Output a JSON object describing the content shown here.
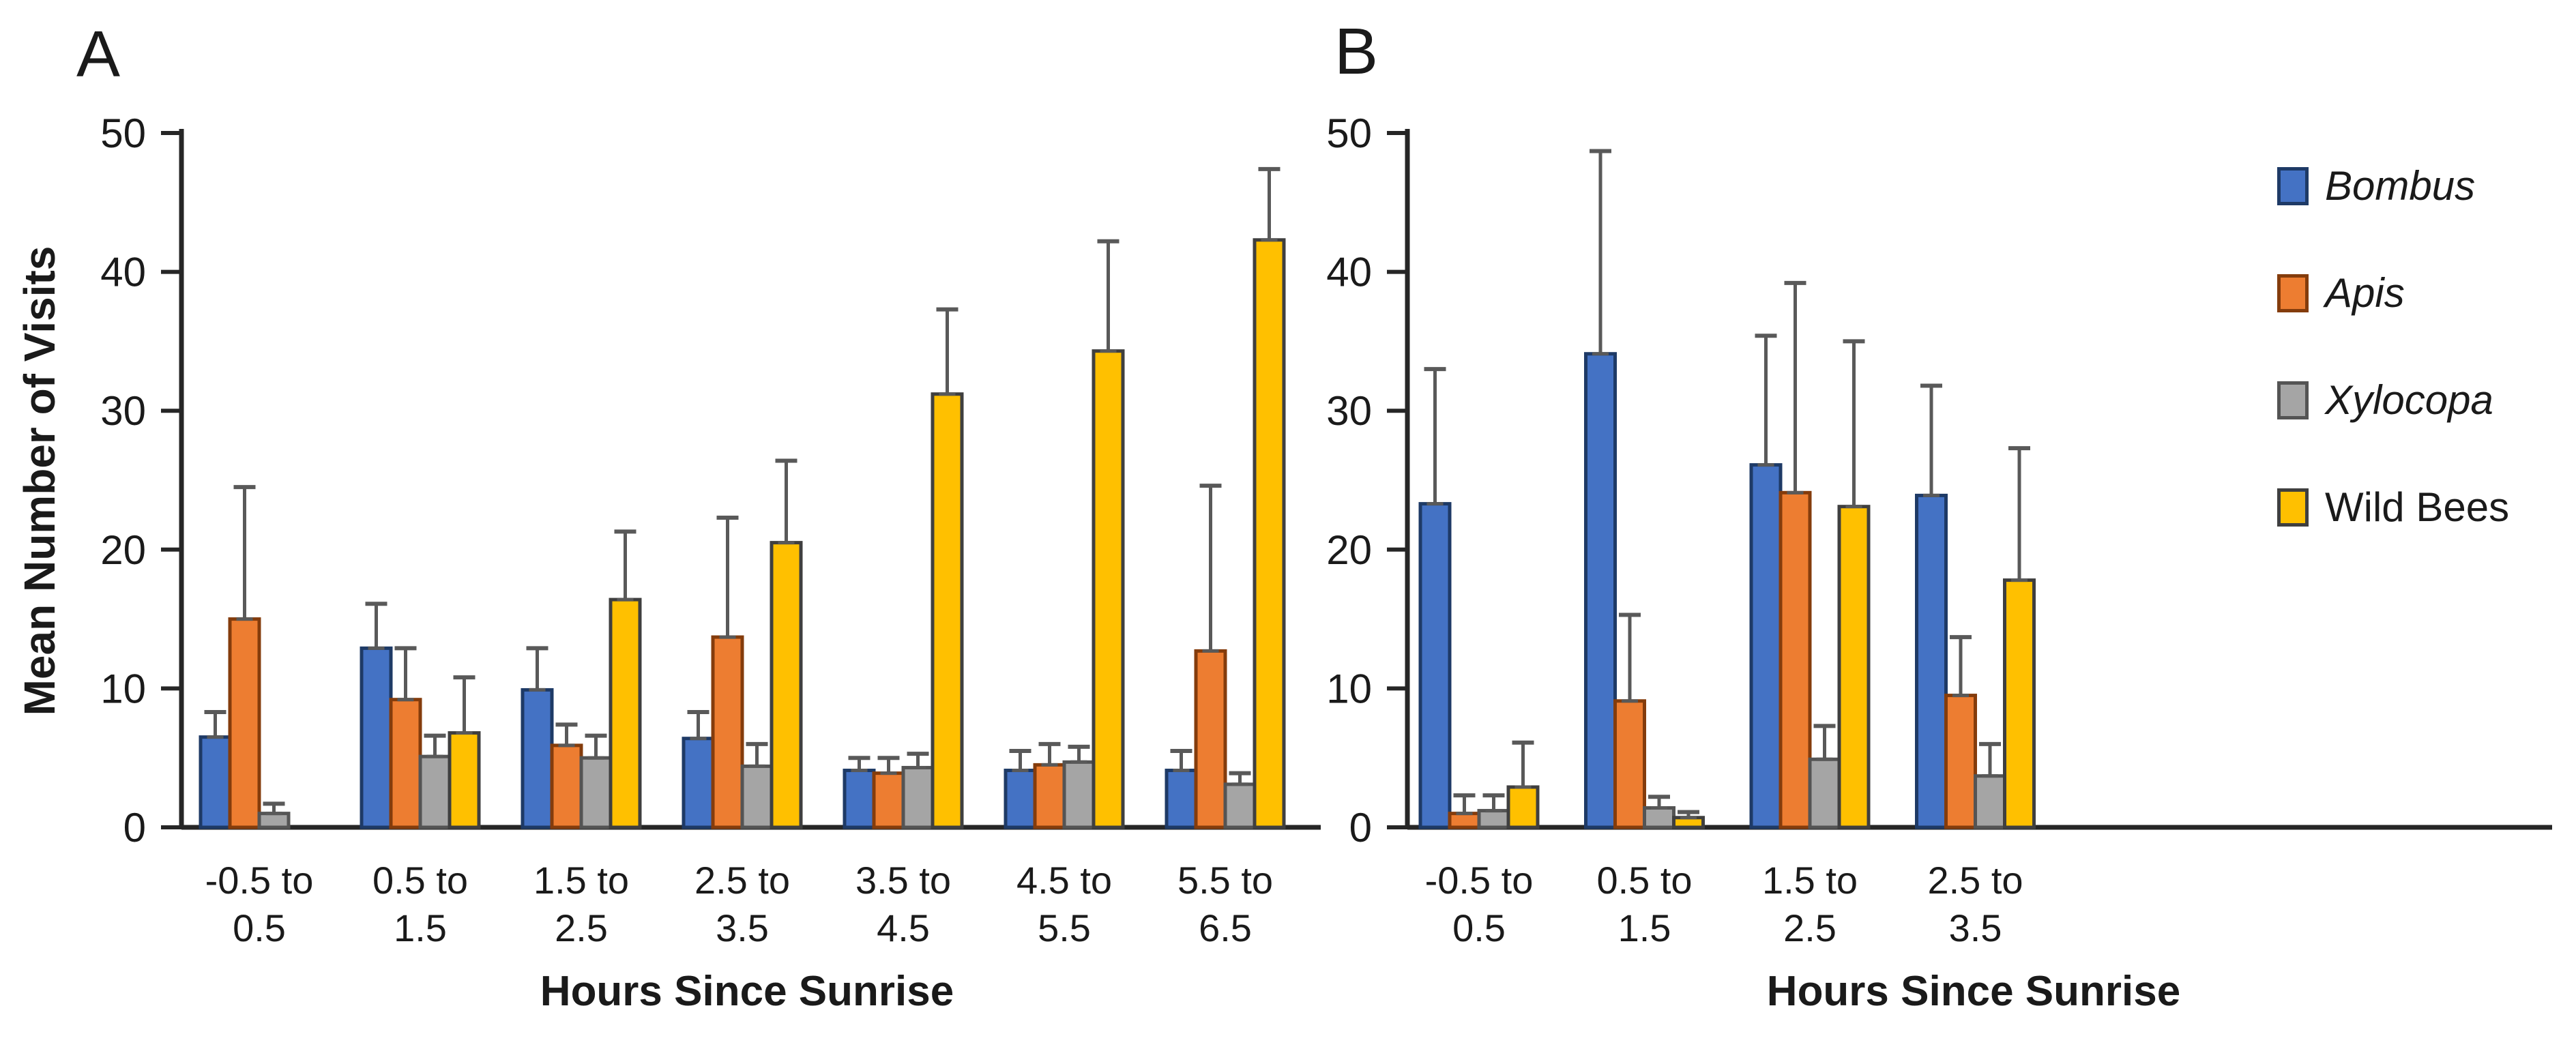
{
  "panels": {
    "a_letter": "A",
    "b_letter": "B"
  },
  "legend": {
    "items": [
      {
        "label": "Bombus",
        "italic": true,
        "color": "#4472C4",
        "outline": "#1E3A66"
      },
      {
        "label": "Apis",
        "italic": true,
        "color": "#ED7D31",
        "outline": "#843C0C"
      },
      {
        "label": "Xylocopa",
        "italic": true,
        "color": "#A5A5A5",
        "outline": "#545454"
      },
      {
        "label": "Wild Bees",
        "italic": false,
        "color": "#FFC000",
        "outline": "#3F3F3F"
      }
    ]
  },
  "styles": {
    "axis_color": "#262626",
    "error_bar_color": "#595959",
    "text_color": "#262626",
    "background": "#FFFFFF"
  },
  "chart_data": [
    {
      "panel": "A",
      "type": "bar",
      "title": "",
      "xlabel": "Hours Since Sunrise",
      "ylabel": "Mean Number of Visits",
      "ylim": [
        0,
        50
      ],
      "yticks": [
        0,
        10,
        20,
        30,
        40,
        50
      ],
      "grid": false,
      "legend_position": "right-of-panel-B",
      "categories": [
        [
          "-0.5 to",
          "0.5"
        ],
        [
          "0.5 to",
          "1.5"
        ],
        [
          "1.5 to",
          "2.5"
        ],
        [
          "2.5 to",
          "3.5"
        ],
        [
          "3.5 to",
          "4.5"
        ],
        [
          "4.5 to",
          "5.5"
        ],
        [
          "5.5 to",
          "6.5"
        ]
      ],
      "series": [
        {
          "name": "Bombus",
          "values": [
            6.5,
            12.9,
            9.9,
            6.4,
            4.1,
            4.1,
            4.1
          ],
          "err_top": [
            8.3,
            16.1,
            12.9,
            8.3,
            5.0,
            5.5,
            5.5
          ]
        },
        {
          "name": "Apis",
          "values": [
            15.0,
            9.2,
            5.9,
            13.7,
            3.9,
            4.5,
            12.7
          ],
          "err_top": [
            24.5,
            12.9,
            7.4,
            22.3,
            5.0,
            6.0,
            24.6
          ]
        },
        {
          "name": "Xylocopa",
          "values": [
            1.0,
            5.1,
            5.0,
            4.4,
            4.3,
            4.7,
            3.1
          ],
          "err_top": [
            1.7,
            6.6,
            6.6,
            6.0,
            5.3,
            5.8,
            3.9
          ]
        },
        {
          "name": "Wild Bees",
          "values": [
            0,
            6.8,
            16.4,
            20.5,
            31.2,
            34.3,
            42.3
          ],
          "err_top": [
            0,
            10.8,
            21.3,
            26.4,
            37.3,
            42.2,
            47.4
          ]
        }
      ]
    },
    {
      "panel": "B",
      "type": "bar",
      "title": "",
      "xlabel": "Hours Since Sunrise",
      "ylabel": "",
      "ylim": [
        0,
        50
      ],
      "yticks": [
        0,
        10,
        20,
        30,
        40,
        50
      ],
      "grid": false,
      "categories": [
        [
          "-0.5 to",
          "0.5"
        ],
        [
          "0.5 to",
          "1.5"
        ],
        [
          "1.5 to",
          "2.5"
        ],
        [
          "2.5 to",
          "3.5"
        ]
      ],
      "series": [
        {
          "name": "Bombus",
          "values": [
            23.3,
            34.1,
            26.1,
            23.9
          ],
          "err_top": [
            33.0,
            48.7,
            35.4,
            31.8
          ]
        },
        {
          "name": "Apis",
          "values": [
            1.0,
            9.1,
            24.1,
            9.5
          ],
          "err_top": [
            2.3,
            15.3,
            39.2,
            13.7
          ]
        },
        {
          "name": "Xylocopa",
          "values": [
            1.2,
            1.4,
            4.9,
            3.7
          ],
          "err_top": [
            2.3,
            2.2,
            7.3,
            6.0
          ]
        },
        {
          "name": "Wild Bees",
          "values": [
            2.9,
            0.7,
            23.1,
            17.8
          ],
          "err_top": [
            6.1,
            1.1,
            35.0,
            27.3
          ]
        }
      ]
    }
  ]
}
